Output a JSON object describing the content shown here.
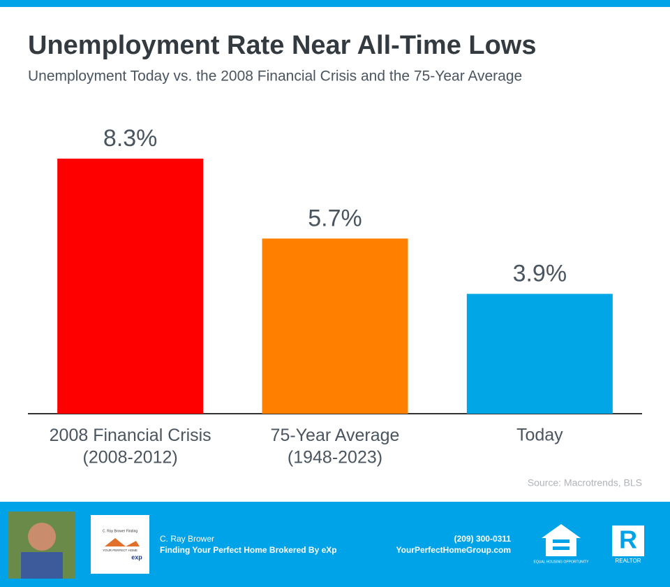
{
  "chart_data": {
    "type": "bar",
    "title": "Unemployment Rate Near All-Time Lows",
    "subtitle": "Unemployment Today vs. the 2008 Financial Crisis and the 75-Year Average",
    "categories": [
      "2008 Financial Crisis\n(2008-2012)",
      "75-Year Average\n(1948-2023)",
      "Today"
    ],
    "values": [
      8.3,
      5.7,
      3.9
    ],
    "value_labels": [
      "8.3%",
      "5.7%",
      "3.9%"
    ],
    "colors": [
      "#ff0000",
      "#ff8000",
      "#00a6e6"
    ],
    "source": "Source: Macrotrends, BLS"
  },
  "footer": {
    "logo_text": "C. Ray Brower Finding",
    "logo_subtext": "YOUR PERFECT HOME",
    "logo_brand": "exp",
    "name": "C. Ray Brower",
    "tagline": "Finding Your Perfect Home Brokered By eXp",
    "phone": "(209) 300-0311",
    "website": "YourPerfectHomeGroup.com",
    "equal_housing": "EQUAL HOUSING OPPORTUNITY",
    "realtor": "REALTOR"
  }
}
